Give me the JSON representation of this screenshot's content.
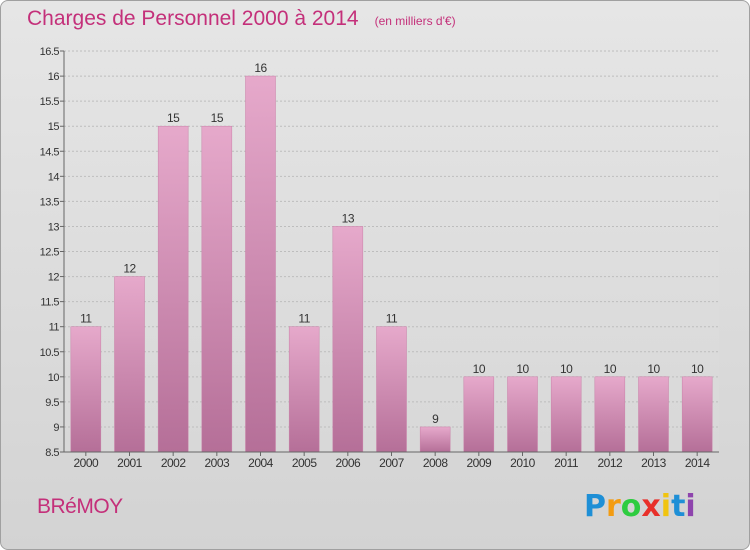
{
  "header": {
    "title": "Charges de Personnel 2000 à 2014",
    "subtitle": "(en milliers d'€)"
  },
  "footer": {
    "commune": "BRéMOY",
    "logo_letters": [
      "P",
      "r",
      "o",
      "x",
      "i",
      "t",
      "i"
    ],
    "logo_colors": [
      "#1e8fd6",
      "#f39c12",
      "#2ecc40",
      "#e8302a",
      "#f1c40f",
      "#1e8fd6",
      "#8e44ad"
    ]
  },
  "chart_data": {
    "type": "bar",
    "title": "Charges de Personnel 2000 à 2014",
    "subtitle": "(en milliers d'€)",
    "categories": [
      "2000",
      "2001",
      "2002",
      "2003",
      "2004",
      "2005",
      "2006",
      "2007",
      "2008",
      "2009",
      "2010",
      "2011",
      "2012",
      "2013",
      "2014"
    ],
    "values": [
      11,
      12,
      15,
      15,
      16,
      11,
      13,
      11,
      9,
      10,
      10,
      10,
      10,
      10,
      10
    ],
    "value_labels": [
      "11",
      "12",
      "15",
      "15",
      "16",
      "11",
      "13",
      "11",
      "9",
      "10",
      "10",
      "10",
      "10",
      "10",
      "10"
    ],
    "ylim": [
      8.5,
      16.5
    ],
    "yticks": [
      8.5,
      9,
      9.5,
      10,
      10.5,
      11,
      11.5,
      12,
      12.5,
      13,
      13.5,
      14,
      14.5,
      15,
      15.5,
      16,
      16.5
    ],
    "ytick_labels": [
      "8.5",
      "9",
      "9.5",
      "10",
      "10.5",
      "11",
      "11.5",
      "12",
      "12.5",
      "13",
      "13.5",
      "14",
      "14.5",
      "15",
      "15.5",
      "16",
      "16.5"
    ],
    "xlabel": "",
    "ylabel": "",
    "grid": true,
    "colors": {
      "bar_top": "#e6a9cb",
      "bar_bottom": "#b56f98",
      "bar_edge": "#c980a8",
      "grid": "#bdbdbd",
      "axis": "#666666",
      "text": "#333333"
    }
  }
}
